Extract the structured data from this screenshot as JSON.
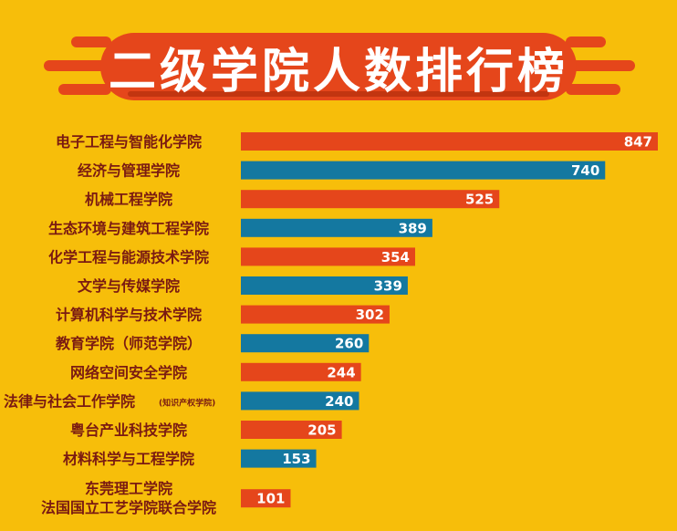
{
  "title": "二级学院人数排行榜",
  "colors": {
    "background": "#F7BE0A",
    "orange": "#E5461B",
    "blue": "#1478A0",
    "label": "#7a1a12"
  },
  "chart_data": {
    "type": "bar",
    "orientation": "horizontal",
    "title": "二级学院人数排行榜",
    "categories": [
      "电子工程与智能化学院",
      "经济与管理学院",
      "机械工程学院",
      "生态环境与建筑工程学院",
      "化学工程与能源技术学院",
      "文学与传媒学院",
      "计算机科学与技术学院",
      "教育学院（师范学院）",
      "网络空间安全学院",
      "法律与社会工作学院",
      "粤台产业科技学院",
      "材料科学与工程学院",
      "东莞理工学院"
    ],
    "category_notes": [
      "",
      "",
      "",
      "",
      "",
      "",
      "",
      "",
      "",
      "(知识产权学院)",
      "",
      "",
      ""
    ],
    "category_second_lines": [
      "",
      "",
      "",
      "",
      "",
      "",
      "",
      "",
      "",
      "",
      "",
      "",
      "法国国立工艺学院联合学院"
    ],
    "values": [
      847,
      740,
      525,
      389,
      354,
      339,
      302,
      260,
      244,
      240,
      205,
      153,
      101
    ],
    "bar_colors": [
      "#E5461B",
      "#1478A0",
      "#E5461B",
      "#1478A0",
      "#E5461B",
      "#1478A0",
      "#E5461B",
      "#1478A0",
      "#E5461B",
      "#1478A0",
      "#E5461B",
      "#1478A0",
      "#E5461B"
    ],
    "xlim": [
      0,
      847
    ],
    "grid": false,
    "data_labels": true
  }
}
